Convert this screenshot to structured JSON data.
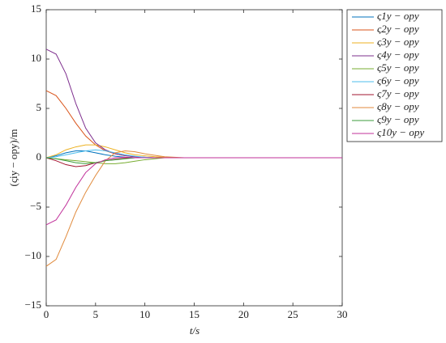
{
  "chart_data": {
    "type": "line",
    "x_label": "t/s",
    "y_label": "(ςiy − opy)/m",
    "x": [
      0,
      1,
      2,
      3,
      4,
      5,
      6,
      7,
      8,
      9,
      10,
      11,
      12,
      13,
      14,
      15,
      20,
      25,
      30
    ],
    "xlim": [
      0,
      30
    ],
    "ylim": [
      -15,
      15
    ],
    "xticks": [
      0,
      5,
      10,
      15,
      20,
      25,
      30
    ],
    "yticks": [
      {
        "value": -15,
        "label": "−15"
      },
      {
        "value": -10,
        "label": "−10"
      },
      {
        "value": -5,
        "label": "−5"
      },
      0,
      5,
      10,
      15
    ],
    "grid": false,
    "legend": "outside-right",
    "series": [
      {
        "name": "ς1y − opy",
        "color": "#0072BD",
        "values": [
          0,
          0.2,
          0.5,
          0.7,
          0.7,
          0.5,
          0.3,
          0.15,
          0.05,
          0,
          0,
          0,
          0,
          0,
          0,
          0,
          0,
          0,
          0
        ]
      },
      {
        "name": "ς2y − opy",
        "color": "#D95319",
        "values": [
          6.8,
          6.3,
          5,
          3.5,
          2.2,
          1.3,
          0.7,
          0.4,
          0.2,
          0.1,
          0.05,
          0,
          0,
          0,
          0,
          0,
          0,
          0,
          0
        ]
      },
      {
        "name": "ς3y − opy",
        "color": "#EDB120",
        "values": [
          0,
          0.3,
          0.8,
          1.1,
          1.3,
          1.3,
          1.1,
          0.8,
          0.5,
          0.3,
          0.2,
          0.1,
          0.05,
          0,
          0,
          0,
          0,
          0,
          0
        ]
      },
      {
        "name": "ς4y − opy",
        "color": "#7E2F8E",
        "values": [
          11,
          10.5,
          8.5,
          5.5,
          3,
          1.5,
          0.8,
          0.4,
          0.2,
          0.1,
          0.05,
          0,
          0,
          0,
          0,
          0,
          0,
          0,
          0
        ]
      },
      {
        "name": "ς5y − opy",
        "color": "#77AC30",
        "values": [
          0,
          -0.1,
          -0.2,
          -0.3,
          -0.4,
          -0.5,
          -0.6,
          -0.6,
          -0.5,
          -0.35,
          -0.2,
          -0.1,
          0,
          0,
          0,
          0,
          0,
          0,
          0
        ]
      },
      {
        "name": "ς6y − opy",
        "color": "#4DBEEE",
        "values": [
          0,
          0.1,
          0.3,
          0.5,
          0.7,
          0.8,
          0.7,
          0.5,
          0.3,
          0.15,
          0.05,
          0,
          0,
          0,
          0,
          0,
          0,
          0,
          0
        ]
      },
      {
        "name": "ς7y − opy",
        "color": "#A2142F",
        "values": [
          0,
          -0.3,
          -0.7,
          -0.9,
          -0.8,
          -0.5,
          -0.3,
          -0.15,
          -0.05,
          0,
          0,
          0,
          0,
          0,
          0,
          0,
          0,
          0,
          0
        ]
      },
      {
        "name": "ς8y − opy",
        "color": "#E08A3C",
        "values": [
          -11,
          -10.3,
          -8,
          -5.5,
          -3.5,
          -1.8,
          -0.3,
          0.5,
          0.7,
          0.6,
          0.4,
          0.25,
          0.1,
          0.05,
          0,
          0,
          0,
          0,
          0
        ]
      },
      {
        "name": "ς9y − opy",
        "color": "#3B9B3B",
        "values": [
          0,
          -0.1,
          -0.3,
          -0.5,
          -0.6,
          -0.5,
          -0.3,
          -0.2,
          -0.1,
          0,
          0,
          0,
          0,
          0,
          0,
          0,
          0,
          0,
          0
        ]
      },
      {
        "name": "ς10y − opy",
        "color": "#C0309A",
        "values": [
          -6.8,
          -6.3,
          -4.8,
          -3,
          -1.5,
          -0.6,
          -0.2,
          0,
          0.05,
          0,
          0,
          0,
          0,
          0,
          0,
          0,
          0,
          0,
          0
        ]
      }
    ]
  }
}
